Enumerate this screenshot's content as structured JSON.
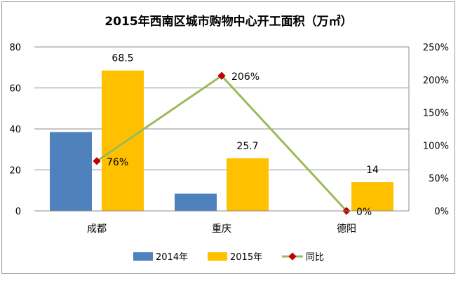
{
  "chart_data": {
    "type": "bar",
    "title": "2015年西南区城市购物中心开工面积（万㎡）",
    "categories": [
      "成都",
      "重庆",
      "德阳"
    ],
    "series": [
      {
        "name": "2014年",
        "kind": "bar",
        "axis": "left",
        "color": "#4F81BD",
        "values": [
          38.5,
          8.4,
          0
        ]
      },
      {
        "name": "2015年",
        "kind": "bar",
        "axis": "left",
        "color": "#FFC000",
        "values": [
          68.5,
          25.7,
          14
        ]
      },
      {
        "name": "同比",
        "kind": "line",
        "axis": "right",
        "color": "#9BBB59",
        "marker_color": "#C00000",
        "values": [
          0.76,
          2.06,
          0
        ]
      }
    ],
    "data_labels": {
      "2015年": [
        "68.5",
        "25.7",
        "14"
      ],
      "同比": [
        "76%",
        "206%",
        "0%"
      ]
    },
    "ylim": [
      0,
      80
    ],
    "yticks": [
      "0",
      "20",
      "40",
      "60",
      "80"
    ],
    "y2lim": [
      0,
      2.5
    ],
    "y2ticks": [
      "0%",
      "50%",
      "100%",
      "150%",
      "200%",
      "250%"
    ],
    "grid": true,
    "legend_position": "bottom"
  }
}
